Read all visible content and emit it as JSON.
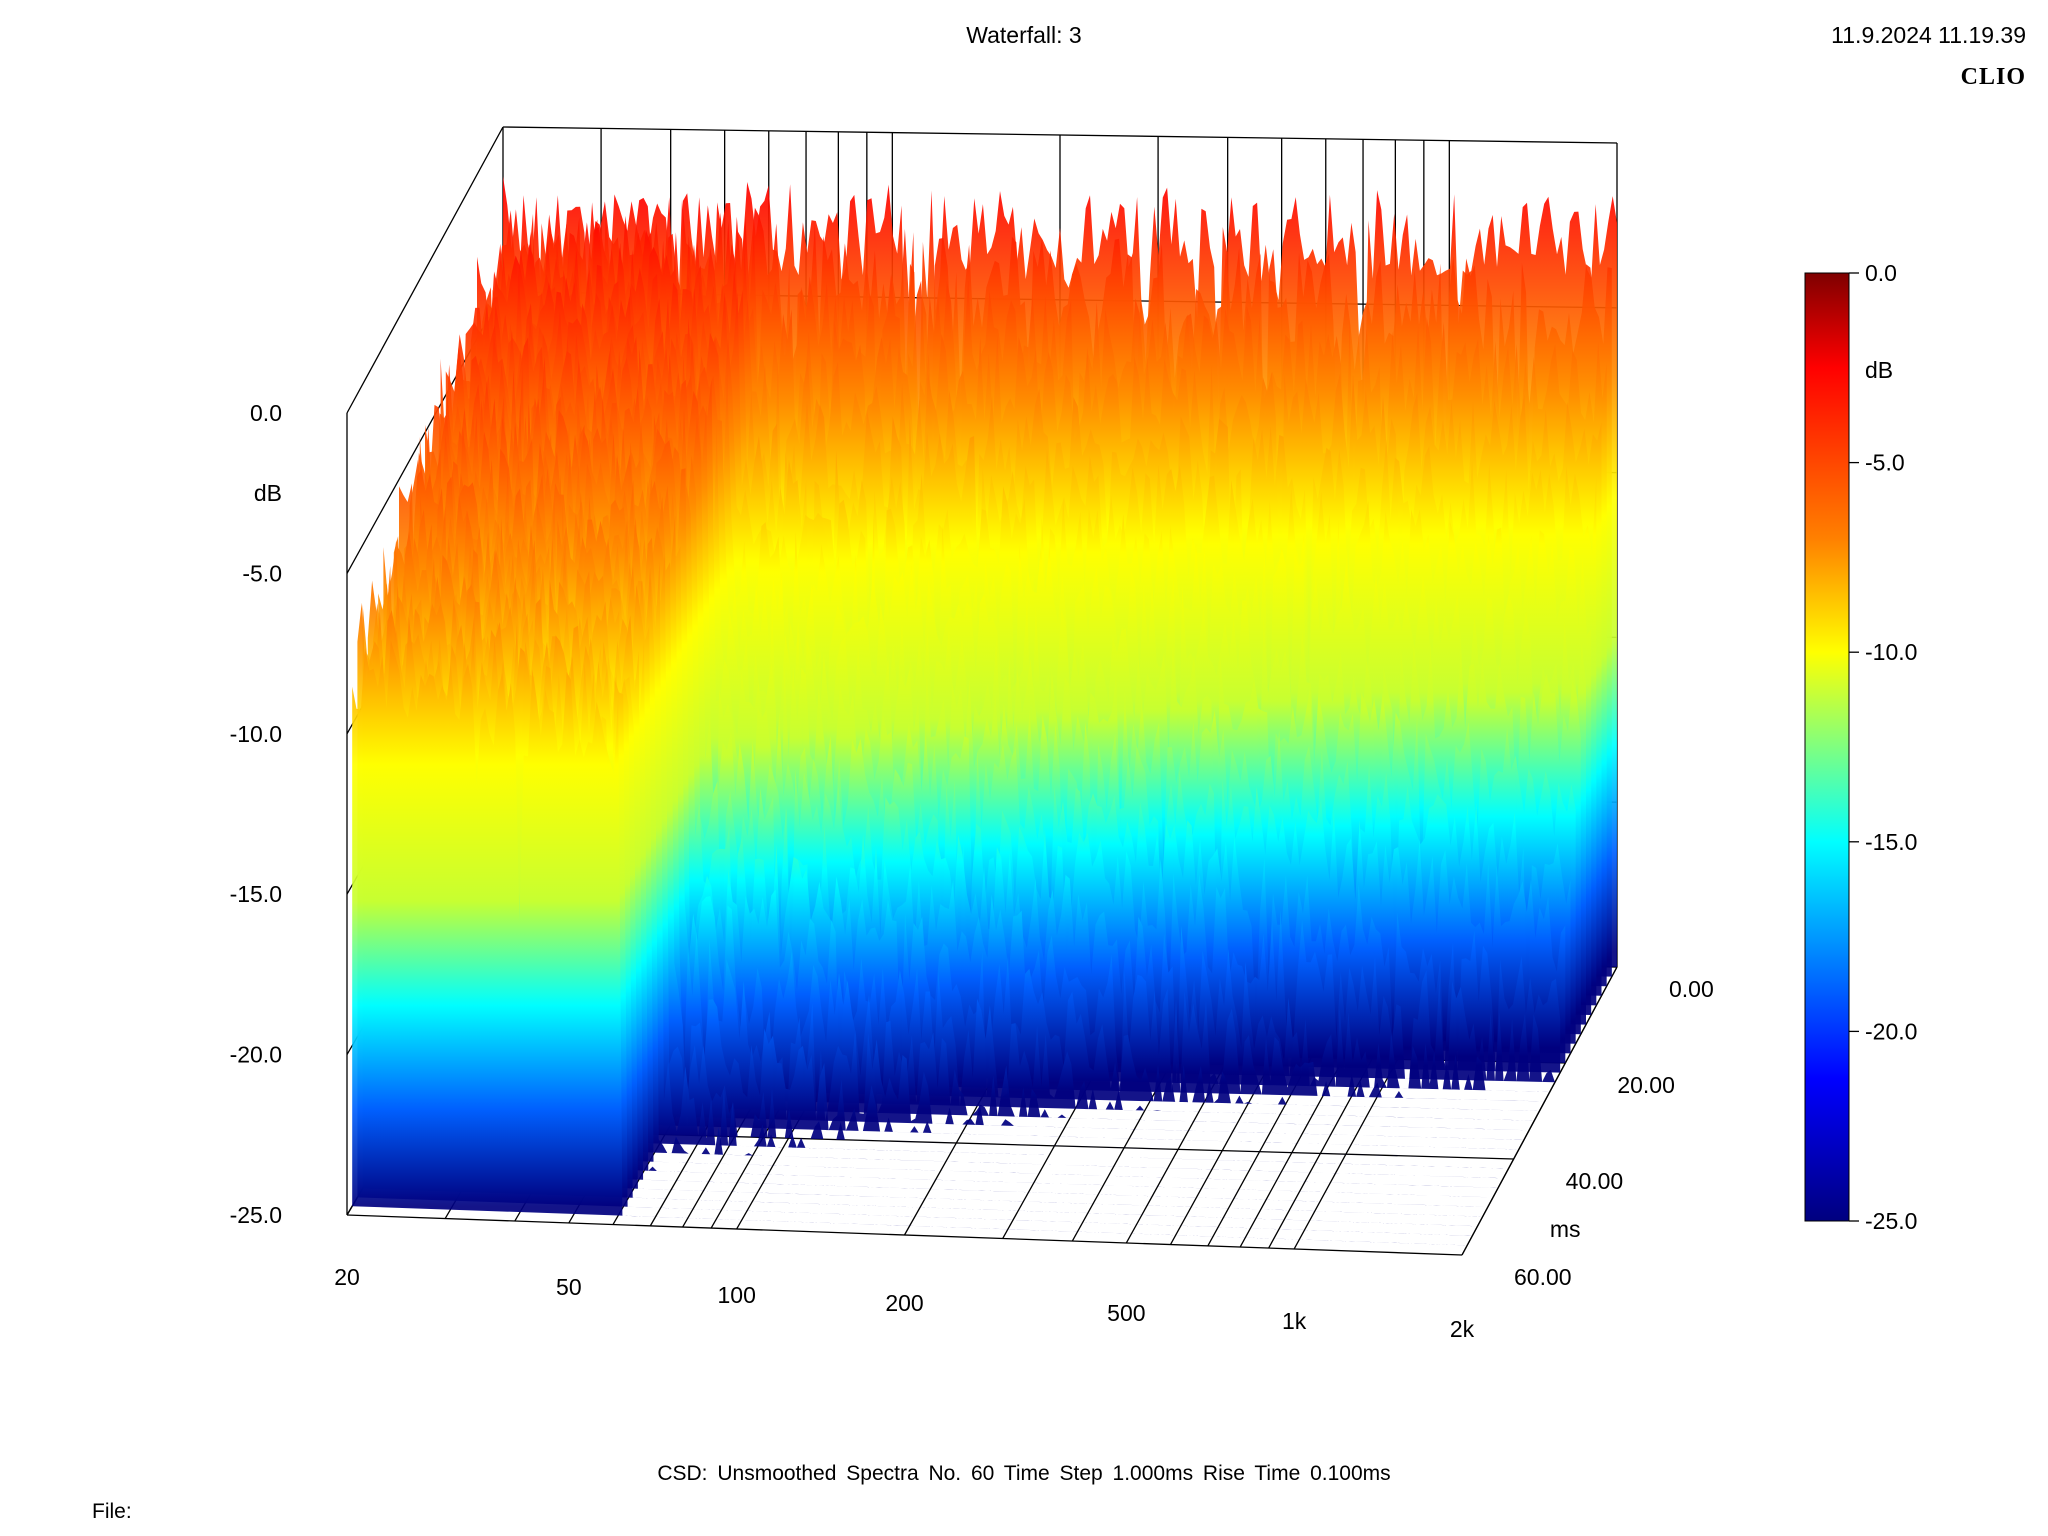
{
  "header": {
    "title": "Waterfall: 3",
    "datetime": "11.9.2024 11.19.39",
    "brand": "CLIO"
  },
  "footer": {
    "info": "CSD:   Unsmoothed   Spectra No. 60   Time Step 1.000ms   Rise Time 0.100ms",
    "file_label": "File:"
  },
  "chart_data": {
    "type": "waterfall",
    "title": "Waterfall: 3",
    "zlabel": "dB",
    "zlim": [
      -25,
      0
    ],
    "z_ticks": [
      "0.0",
      "-5.0",
      "-10.0",
      "-15.0",
      "-20.0",
      "-25.0"
    ],
    "xlabel": "",
    "x_scale": "log",
    "xlim": [
      20,
      2000
    ],
    "x_ticks": [
      "20",
      "50",
      "100",
      "200",
      "500",
      "1k",
      "2k"
    ],
    "ylabel": "ms",
    "ylim": [
      0,
      60
    ],
    "y_ticks": [
      "0.00",
      "20.00",
      "40.00",
      "60.00"
    ],
    "colorbar": {
      "label": "dB",
      "range": [
        -25,
        0
      ],
      "ticks": [
        "0.0",
        "-5.0",
        "-10.0",
        "-15.0",
        "-20.0",
        "-25.0"
      ],
      "colormap": [
        "#00007f",
        "#0000ff",
        "#00ffff",
        "#ffff00",
        "#ff0000",
        "#7f0000"
      ]
    },
    "spectra_count": 60,
    "time_step_ms": 1.0,
    "rise_time_ms": 0.1,
    "smoothing": "Unsmoothed"
  }
}
